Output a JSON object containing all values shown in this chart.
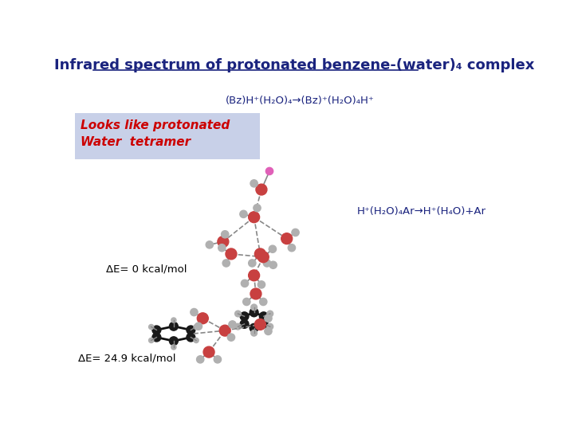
{
  "title": "Infrared spectrum of protonated benzene-(water)₄ complex",
  "subtitle": "(Bz)H⁺(H₂O)₄→(Bz)⁺(H₂O)₄H⁺",
  "label_left1": "Looks like protonated",
  "label_left2": "Water  tetramer",
  "label_right": "H⁺(H₂O)₄Ar→H⁺(H₄O)+Ar",
  "delta_e1": "ΔE= 0 kcal/mol",
  "delta_e2": "ΔE= 24.9 kcal/mol",
  "bg_color": "#ffffff",
  "title_color": "#1a237e",
  "subtitle_color": "#1a237e",
  "left_label_color": "#cc0000",
  "left_label_bg": "#c8d0e8",
  "right_label_color": "#1a237e",
  "delta_color": "#000000",
  "red": "#c84040",
  "light_gray": "#b0b0b0",
  "dark_gray": "#1a1a1a",
  "magenta": "#e060b8"
}
